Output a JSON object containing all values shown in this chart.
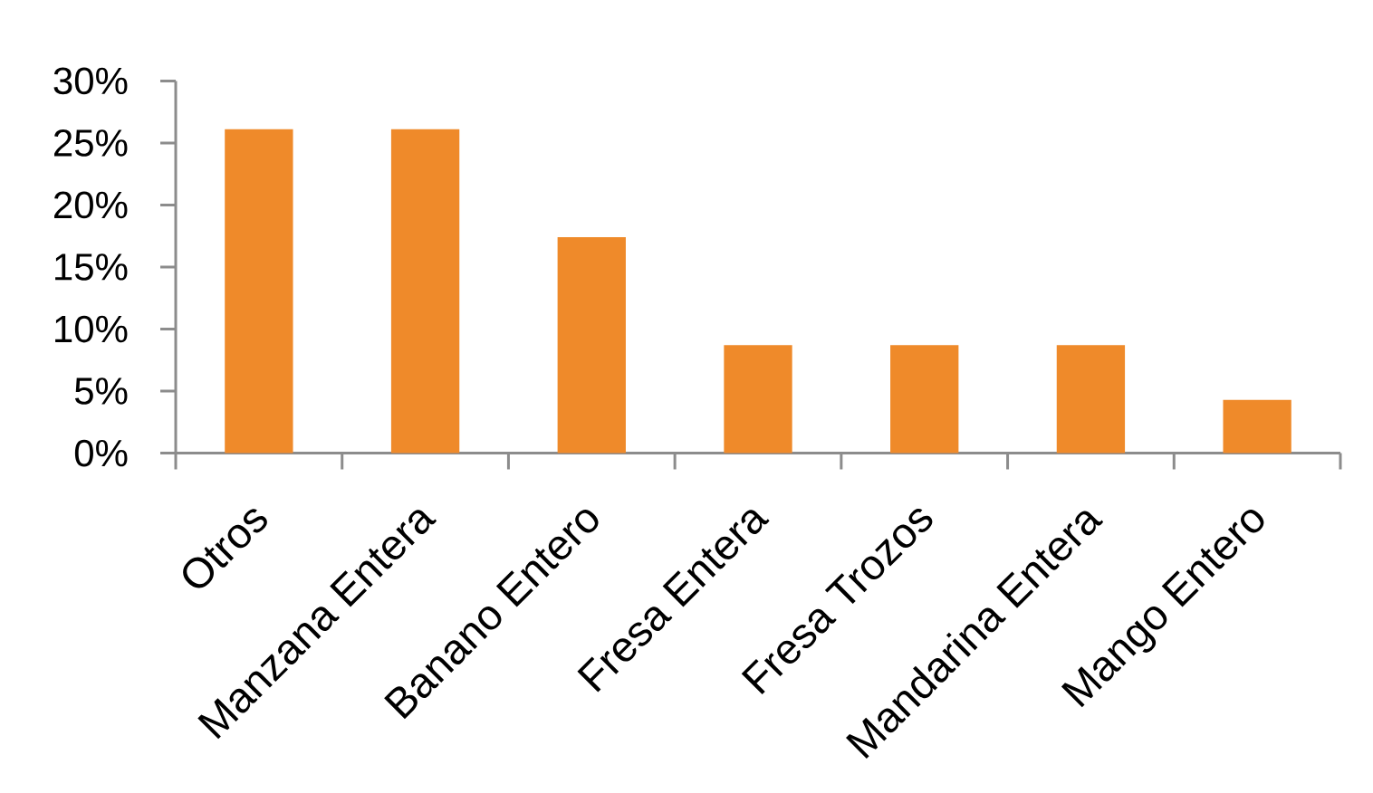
{
  "chart_data": {
    "type": "bar",
    "categories": [
      "Otros",
      "Manzana Entera",
      "Banano Entero",
      "Fresa Entera",
      "Fresa Trozos",
      "Mandarina Entera",
      "Mango Entero"
    ],
    "values": [
      26.1,
      26.1,
      17.4,
      8.7,
      8.7,
      8.7,
      4.3
    ],
    "color": "#ef8a2a",
    "ylim": [
      0,
      30
    ],
    "yticks": [
      {
        "value": 0,
        "label": "0%"
      },
      {
        "value": 5,
        "label": "5%"
      },
      {
        "value": 10,
        "label": "10%"
      },
      {
        "value": 15,
        "label": "15%"
      },
      {
        "value": 20,
        "label": "20%"
      },
      {
        "value": 25,
        "label": "25%"
      },
      {
        "value": 30,
        "label": "30%"
      }
    ]
  }
}
